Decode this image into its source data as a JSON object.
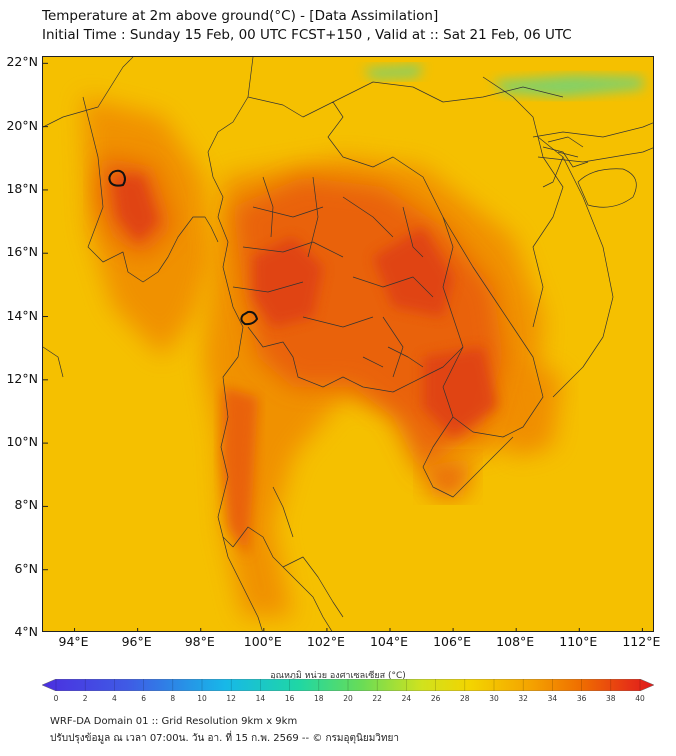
{
  "title_line1": "Temperature at 2m above ground(°C) - [Data Assimilation]",
  "title_line2": "Initial Time : Sunday 15 Feb, 00 UTC FCST+150 , Valid at :: Sat 21 Feb, 06 UTC",
  "map": {
    "lat_labels": [
      "22°N",
      "20°N",
      "18°N",
      "16°N",
      "14°N",
      "12°N",
      "10°N",
      "8°N",
      "6°N",
      "4°N"
    ],
    "lon_labels": [
      "94°E",
      "96°E",
      "98°E",
      "100°E",
      "102°E",
      "104°E",
      "106°E",
      "108°E",
      "110°E",
      "112°E"
    ],
    "lat_range": [
      4,
      22.2
    ],
    "lon_range": [
      93,
      112.4
    ],
    "colors": {
      "background": "#f5c000",
      "warm": "#f08c00",
      "hot": "#e85a0a",
      "hottest": "#de3c12",
      "cool_green": "#6ed47a",
      "boundary": "#333333",
      "contour": "#111111"
    }
  },
  "colorbar": {
    "title": "อุณหภูมิ หน่วย องศาเซลเซียส (°C)",
    "ticks": [
      "0",
      "2",
      "4",
      "6",
      "8",
      "10",
      "12",
      "14",
      "16",
      "18",
      "20",
      "22",
      "24",
      "26",
      "28",
      "30",
      "32",
      "34",
      "36",
      "38",
      "40"
    ],
    "range": [
      0,
      40
    ],
    "extend": "both"
  },
  "footer": {
    "line1": "WRF-DA Domain 01 :: Grid Resolution 9km x 9km",
    "line2": "ปรับปรุงข้อมูล ณ เวลา 07:00น. วัน อา. ที่ 15 ก.พ. 2569 -- © กรมอุตุนิยมวิทยา"
  }
}
